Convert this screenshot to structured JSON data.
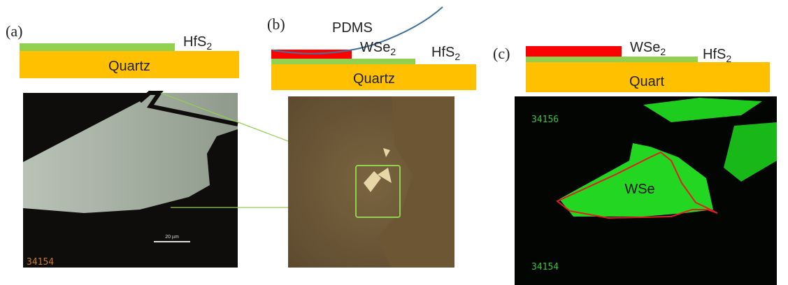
{
  "panel_a": {
    "label": "(a)",
    "hfs2": {
      "text": "HfS",
      "sub": "2"
    },
    "substrate": "Quartz",
    "counter": "34154",
    "scale_bar": "20 µm"
  },
  "panel_b": {
    "label": "(b)",
    "stamp": "PDMS",
    "wse2": {
      "text": "WSe",
      "sub": "2"
    },
    "hfs2": {
      "text": "HfS",
      "sub": "2"
    },
    "substrate": "Quartz"
  },
  "panel_c": {
    "label": "(c)",
    "wse2": {
      "text": "WSe",
      "sub": "2"
    },
    "hfs2": {
      "text": "HfS",
      "sub": "2"
    },
    "substrate": "Quart",
    "counters": [
      "34156",
      "34154"
    ],
    "flake_label": "WSe"
  }
}
